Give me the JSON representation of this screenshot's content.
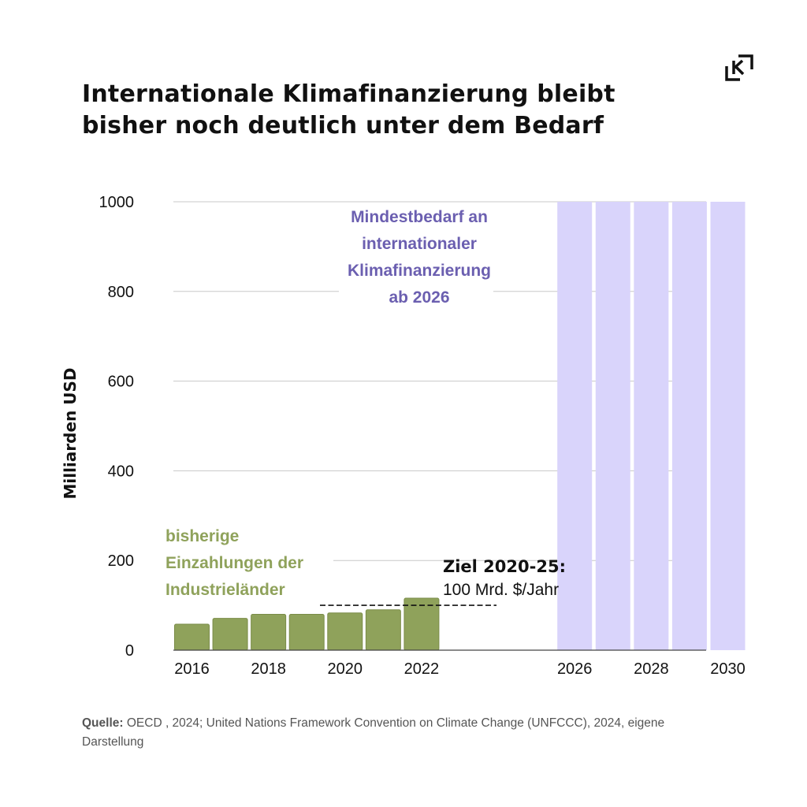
{
  "title": {
    "line1": "Internationale Klimafinanzierung bleibt",
    "line2": "bisher noch deutlich unter dem Bedarf"
  },
  "logo": {
    "icon": "k-corner-logo-icon"
  },
  "chart_data": {
    "type": "bar",
    "title": "Internationale Klimafinanzierung bleibt bisher noch deutlich unter dem Bedarf",
    "ylabel": "Milliarden USD",
    "xlabel": "",
    "ylim": [
      0,
      1000
    ],
    "yticks": [
      0,
      200,
      400,
      600,
      800,
      1000
    ],
    "xticks": [
      "2016",
      "2018",
      "2020",
      "2022",
      "2026",
      "2028",
      "2030"
    ],
    "x_categories": [
      "2016",
      "2017",
      "2018",
      "2019",
      "2020",
      "2021",
      "2022",
      "2023",
      "2024",
      "2025",
      "2026",
      "2027",
      "2028",
      "2029",
      "2030"
    ],
    "grid": true,
    "series": [
      {
        "name": "bisherige Einzahlungen der Industrieländer",
        "color": "#8fa25b",
        "x": [
          "2016",
          "2017",
          "2018",
          "2019",
          "2020",
          "2021",
          "2022"
        ],
        "values": [
          58,
          71,
          80,
          80,
          83,
          90,
          116
        ]
      },
      {
        "name": "Mindestbedarf an internationaler Klimafinanzierung ab 2026",
        "color": "#d9d4fb",
        "x": [
          "2026",
          "2027",
          "2028",
          "2029",
          "2030"
        ],
        "values": [
          1000,
          1000,
          1000,
          1000,
          1000
        ]
      }
    ],
    "target_line": {
      "value": 100,
      "from": "2020",
      "to": "2025",
      "label_bold": "Ziel 2020-25:",
      "label": "100 Mrd. $/Jahr"
    },
    "annotations": {
      "need_lines": [
        "Mindestbedarf an",
        "internationaler",
        "Klimafinanzierung",
        "ab 2026"
      ],
      "need_color": "#6b5fb0",
      "paid_lines": [
        "bisherige",
        "Einzahlungen der",
        "Industrieländer"
      ],
      "paid_color": "#8fa25b"
    }
  },
  "source": {
    "label": "Quelle:",
    "text": " OECD , 2024; United Nations Framework Convention on Climate Change (UNFCCC), 2024, eigene Darstellung"
  }
}
